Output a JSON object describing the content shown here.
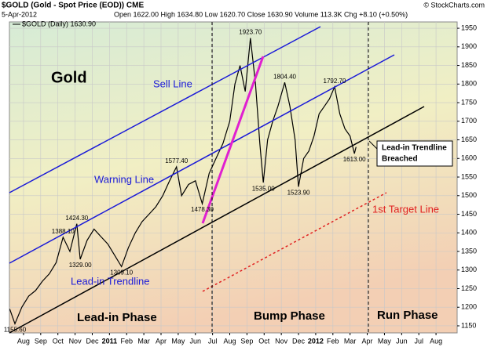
{
  "chart_data": {
    "type": "line",
    "title": "$GOLD (Gold - Spot Price (EOD)) CME",
    "source": "© StockCharts.com",
    "date": "5-Apr-2012",
    "quote": "Open 1622.00 High 1634.80 Low 1620.70 Close 1630.90 Volume 113.3K Chg +8.10 (+0.50%)",
    "legend_label": "$GOLD (Daily) 1630.90",
    "grid": true,
    "xlim": [
      0.18,
      26.23
    ],
    "xticks": [
      {
        "value": 1,
        "label": "Aug"
      },
      {
        "value": 2,
        "label": "Sep"
      },
      {
        "value": 3,
        "label": "Oct"
      },
      {
        "value": 4,
        "label": "Nov"
      },
      {
        "value": 5,
        "label": "Dec"
      },
      {
        "value": 6,
        "label": "2011"
      },
      {
        "value": 7,
        "label": "Feb"
      },
      {
        "value": 8,
        "label": "Mar"
      },
      {
        "value": 9,
        "label": "Apr"
      },
      {
        "value": 10,
        "label": "May"
      },
      {
        "value": 11,
        "label": "Jun"
      },
      {
        "value": 12,
        "label": "Jul"
      },
      {
        "value": 13,
        "label": "Aug"
      },
      {
        "value": 14,
        "label": "Sep"
      },
      {
        "value": 15,
        "label": "Oct"
      },
      {
        "value": 16,
        "label": "Nov"
      },
      {
        "value": 17,
        "label": "Dec"
      },
      {
        "value": 18,
        "label": "2012"
      },
      {
        "value": 19,
        "label": "Feb"
      },
      {
        "value": 20,
        "label": "Mar"
      },
      {
        "value": 21,
        "label": "Apr"
      },
      {
        "value": 22,
        "label": "May"
      },
      {
        "value": 23,
        "label": "Jun"
      },
      {
        "value": 24,
        "label": "Jul"
      },
      {
        "value": 25,
        "label": "Aug"
      }
    ],
    "ylim": [
      1131,
      1967
    ],
    "yticks": [
      1150,
      1200,
      1250,
      1300,
      1350,
      1400,
      1450,
      1500,
      1550,
      1600,
      1650,
      1700,
      1750,
      1800,
      1850,
      1900,
      1950
    ],
    "series": [
      {
        "name": "$GOLD",
        "color": "#000000",
        "x": [
          0.2,
          0.5,
          0.9,
          1.3,
          1.7,
          2.1,
          2.5,
          2.9,
          3.3,
          3.7,
          4.1,
          4.3,
          4.7,
          5.1,
          5.5,
          5.9,
          6.3,
          6.7,
          7.1,
          7.5,
          7.9,
          8.3,
          8.7,
          9.1,
          9.5,
          9.9,
          10.2,
          10.6,
          11.0,
          11.4,
          11.8,
          12.2,
          12.6,
          13.0,
          13.3,
          13.6,
          13.9,
          14.2,
          14.5,
          14.75,
          14.95,
          15.2,
          15.5,
          15.8,
          16.2,
          16.5,
          16.8,
          17.0,
          17.3,
          17.6,
          17.9,
          18.2,
          18.5,
          18.8,
          19.1,
          19.4,
          19.7,
          20.0,
          20.25,
          20.35
        ],
        "values": [
          1195,
          1155.6,
          1200,
          1230,
          1245,
          1270,
          1290,
          1320,
          1388.1,
          1350,
          1424.3,
          1329,
          1380,
          1410,
          1390,
          1370,
          1340,
          1309.1,
          1360,
          1400,
          1430,
          1450,
          1470,
          1500,
          1540,
          1577.4,
          1500,
          1530,
          1540,
          1478.3,
          1560,
          1600,
          1640,
          1700,
          1800,
          1850,
          1780,
          1923.7,
          1800,
          1640,
          1535,
          1650,
          1700,
          1740,
          1804.4,
          1740,
          1650,
          1523.9,
          1600,
          1620,
          1660,
          1720,
          1740,
          1760,
          1792.7,
          1720,
          1680,
          1660,
          1613,
          1630.9
        ]
      }
    ],
    "highs": {
      "x": [
        3.3,
        4.1,
        9.9,
        14.2,
        16.2,
        19.1
      ],
      "values": [
        1388.1,
        1424.3,
        1577.4,
        1923.7,
        1804.4,
        1792.7
      ],
      "value_labels": [
        "1388.10",
        "1424.30",
        "1577.40",
        "1923.70",
        "1804.40",
        "1792.70"
      ]
    },
    "lows": {
      "x": [
        0.5,
        4.3,
        6.7,
        11.4,
        14.95,
        17.0,
        20.25
      ],
      "values": [
        1155.6,
        1329,
        1309.1,
        1478.3,
        1535,
        1523.9,
        1613
      ],
      "value_labels": [
        "1155.60",
        "1329.00",
        "1309.10",
        "1478.30",
        "1535.00",
        "1523.90",
        "1613.00"
      ]
    },
    "annotations": {
      "asset": "Gold",
      "sell_line": "Sell Line",
      "warning_line": "Warning Line",
      "lead_in_trendline": "Lead-in Trendline",
      "target_line": "1st Target Line",
      "breached": [
        "Lead-in Trendline",
        "Breached"
      ]
    },
    "phases": [
      "Lead-in Phase",
      "Bump Phase",
      "Run Phase"
    ]
  }
}
